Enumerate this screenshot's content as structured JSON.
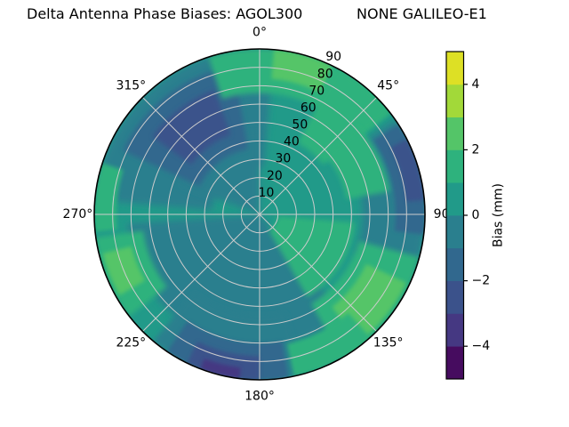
{
  "title": {
    "left": "Delta Antenna Phase Biases: AGOL300",
    "right": "NONE GALILEO-E1"
  },
  "chart_data": {
    "type": "polar_contour",
    "title": "Delta Antenna Phase Biases: AGOL300        NONE GALILEO-E1",
    "projection": "skyplot, azimuth 0° at top increasing clockwise, radial axis 0–90 from center outward",
    "azimuth_labels": [
      "0°",
      "45°",
      "90",
      "135°",
      "180°",
      "225°",
      "270°",
      "315°"
    ],
    "radial_tick_labels": [
      "10",
      "20",
      "30",
      "40",
      "50",
      "60",
      "70",
      "80",
      "90"
    ],
    "radial_range": [
      0,
      90
    ],
    "radial_label_angle_deg": 22.5,
    "grid": true,
    "colorbar": {
      "label": "Bias (mm)",
      "range": [
        -5,
        5
      ],
      "ticks": [
        4,
        2,
        0,
        -2,
        -4
      ],
      "tick_labels": [
        "4",
        "2",
        "0",
        "−2",
        "−4"
      ],
      "levels": [
        -5,
        -4,
        -3,
        -2,
        -1,
        0,
        1,
        2,
        3,
        4,
        5
      ],
      "colors": [
        "#460c5f",
        "#453882",
        "#3b528b",
        "#31688e",
        "#2a7f8e",
        "#219a89",
        "#2eb27d",
        "#54c568",
        "#a2d939",
        "#dde025"
      ],
      "position": "right"
    },
    "base_level": 5,
    "regions": [
      {
        "az": [
          275,
          365
        ],
        "r": [
          26,
          90
        ],
        "level": 4,
        "blur": 4
      },
      {
        "az": [
          290,
          360
        ],
        "r": [
          0,
          46
        ],
        "level": 4,
        "blur": 4
      },
      {
        "az": [
          140,
          266
        ],
        "r": [
          0,
          72
        ],
        "level": 4,
        "blur": 4
      },
      {
        "az": [
          55,
          112
        ],
        "r": [
          56,
          90
        ],
        "level": 4,
        "blur": 4
      },
      {
        "az": [
          165,
          220
        ],
        "r": [
          55,
          90
        ],
        "level": 4,
        "blur": 3
      },
      {
        "az": [
          295,
          350
        ],
        "r": [
          36,
          82
        ],
        "level": 3,
        "blur": 3
      },
      {
        "az": [
          306,
          340
        ],
        "r": [
          46,
          72
        ],
        "level": 2,
        "blur": 3
      },
      {
        "az": [
          57,
          97
        ],
        "r": [
          74,
          90
        ],
        "level": 3,
        "blur": 2
      },
      {
        "az": [
          63,
          85
        ],
        "r": [
          80,
          90
        ],
        "level": 2,
        "blur": 2
      },
      {
        "az": [
          170,
          214
        ],
        "r": [
          70,
          90
        ],
        "level": 3,
        "blur": 2
      },
      {
        "az": [
          180,
          206
        ],
        "r": [
          77,
          90
        ],
        "level": 2,
        "blur": 2
      },
      {
        "az": [
          187,
          201
        ],
        "r": [
          84,
          90
        ],
        "level": 1,
        "blur": 2
      },
      {
        "az": [
          342,
          412
        ],
        "r": [
          66,
          90
        ],
        "level": 6,
        "blur": 3
      },
      {
        "az": [
          28,
          52
        ],
        "r": [
          44,
          90
        ],
        "level": 6,
        "blur": 3
      },
      {
        "az": [
          48,
          80
        ],
        "r": [
          48,
          72
        ],
        "level": 6,
        "blur": 3
      },
      {
        "az": [
          5,
          26
        ],
        "r": [
          74,
          90
        ],
        "level": 7,
        "blur": 2
      },
      {
        "az": [
          95,
          150
        ],
        "r": [
          10,
          52
        ],
        "level": 6,
        "blur": 3
      },
      {
        "az": [
          105,
          150
        ],
        "r": [
          56,
          90
        ],
        "level": 6,
        "blur": 3
      },
      {
        "az": [
          115,
          142
        ],
        "r": [
          64,
          88
        ],
        "level": 7,
        "blur": 2
      },
      {
        "az": [
          138,
          168
        ],
        "r": [
          72,
          90
        ],
        "level": 6,
        "blur": 2
      },
      {
        "az": [
          232,
          262
        ],
        "r": [
          64,
          90
        ],
        "level": 6,
        "blur": 3
      },
      {
        "az": [
          240,
          256
        ],
        "r": [
          72,
          88
        ],
        "level": 7,
        "blur": 2
      },
      {
        "az": [
          264,
          288
        ],
        "r": [
          78,
          90
        ],
        "level": 6,
        "blur": 2
      }
    ],
    "estimated_grid": {
      "azimuth_deg": [
        0,
        45,
        90,
        135,
        180,
        225,
        270,
        315
      ],
      "radius": [
        15,
        45,
        75
      ],
      "bias_mm": [
        [
          0.5,
          0.5,
          1.5
        ],
        [
          0.5,
          1.2,
          0.3
        ],
        [
          1.2,
          0.8,
          -1.5
        ],
        [
          1.2,
          0.8,
          1.6
        ],
        [
          -0.5,
          -0.5,
          -2.5
        ],
        [
          -0.5,
          0.3,
          0.8
        ],
        [
          -0.5,
          0.2,
          1.2
        ],
        [
          -0.5,
          -2.2,
          -1.8
        ]
      ]
    }
  }
}
